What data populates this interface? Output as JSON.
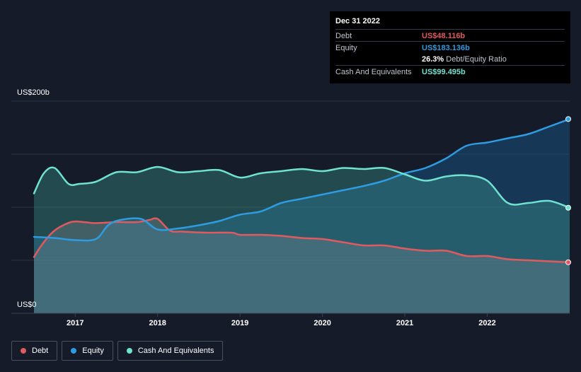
{
  "tooltip": {
    "date": "Dec 31 2022",
    "debt_label": "Debt",
    "debt_value": "US$48.116b",
    "equity_label": "Equity",
    "equity_value": "US$183.136b",
    "ratio_pct": "26.3%",
    "ratio_label": "Debt/Equity Ratio",
    "cash_label": "Cash And Equivalents",
    "cash_value": "US$99.495b"
  },
  "colors": {
    "debt": "#e05a5f",
    "equity": "#2f9be0",
    "cash": "#6fe3cf"
  },
  "chart_data": {
    "type": "area",
    "title": "",
    "xlabel": "",
    "ylabel": "",
    "y_top_label": "US$200b",
    "y_bottom_label": "US$0",
    "ylim": [
      0,
      200
    ],
    "xlim": [
      2016.5,
      2023.0
    ],
    "x_ticks": [
      "2017",
      "2018",
      "2019",
      "2020",
      "2021",
      "2022"
    ],
    "legend_position": "bottom-left",
    "series": [
      {
        "name": "Debt",
        "color": "#e05a5f",
        "x": [
          2016.5,
          2016.6,
          2016.75,
          2016.95,
          2017.1,
          2017.25,
          2017.5,
          2017.75,
          2017.9,
          2018.0,
          2018.15,
          2018.3,
          2018.6,
          2018.9,
          2019.0,
          2019.25,
          2019.5,
          2019.75,
          2020.0,
          2020.25,
          2020.5,
          2020.75,
          2021.0,
          2021.25,
          2021.5,
          2021.75,
          2022.0,
          2022.25,
          2022.5,
          2022.75,
          2023.0
        ],
        "values": [
          53,
          65,
          78,
          86,
          86,
          85,
          86,
          86,
          88,
          89,
          78,
          77,
          76,
          76,
          74,
          74,
          73,
          71,
          70,
          67,
          64,
          64,
          61,
          59,
          59,
          54,
          54,
          51,
          50,
          49,
          48.1
        ]
      },
      {
        "name": "Equity",
        "color": "#2f9be0",
        "x": [
          2016.5,
          2016.75,
          2017.0,
          2017.25,
          2017.4,
          2017.55,
          2017.8,
          2018.0,
          2018.25,
          2018.5,
          2018.75,
          2019.0,
          2019.25,
          2019.5,
          2019.75,
          2020.0,
          2020.25,
          2020.5,
          2020.75,
          2021.0,
          2021.25,
          2021.5,
          2021.75,
          2022.0,
          2022.25,
          2022.5,
          2022.75,
          2023.0
        ],
        "values": [
          72,
          71,
          69,
          70,
          83,
          88,
          89,
          79,
          80,
          83,
          87,
          93,
          96,
          104,
          108,
          112,
          116,
          120,
          125,
          132,
          137,
          146,
          158,
          161,
          165,
          169,
          176,
          183.1
        ]
      },
      {
        "name": "Cash And Equivalents",
        "color": "#6fe3cf",
        "x": [
          2016.5,
          2016.62,
          2016.75,
          2016.92,
          2017.05,
          2017.25,
          2017.5,
          2017.75,
          2018.0,
          2018.25,
          2018.5,
          2018.75,
          2019.0,
          2019.25,
          2019.5,
          2019.75,
          2020.0,
          2020.25,
          2020.5,
          2020.75,
          2021.0,
          2021.25,
          2021.5,
          2021.75,
          2022.0,
          2022.25,
          2022.5,
          2022.75,
          2023.0
        ],
        "values": [
          113,
          132,
          137,
          122,
          122,
          124,
          133,
          133,
          138,
          133,
          134,
          135,
          128,
          132,
          134,
          136,
          134,
          137,
          136,
          137,
          131,
          125,
          129,
          130,
          125,
          104,
          104,
          106,
          99.5
        ]
      }
    ]
  }
}
